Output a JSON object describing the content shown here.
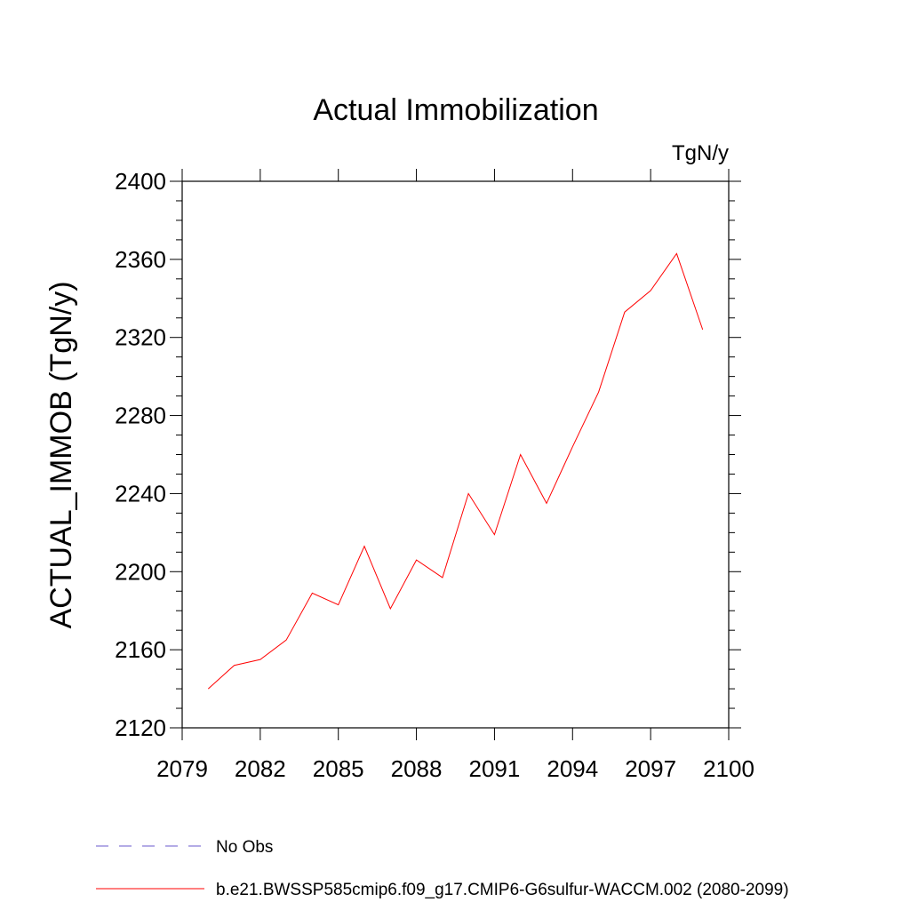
{
  "chart_data": {
    "type": "line",
    "title": "Actual Immobilization",
    "units_label": "TgN/y",
    "xlabel": "",
    "ylabel": "ACTUAL_IMMOB  (TgN/y)",
    "xlim": [
      2079,
      2100
    ],
    "ylim": [
      2120,
      2400
    ],
    "x_ticks": [
      "2079",
      "2082",
      "2085",
      "2088",
      "2091",
      "2094",
      "2097",
      "2100"
    ],
    "y_ticks": [
      "2120",
      "2160",
      "2200",
      "2240",
      "2280",
      "2320",
      "2360",
      "2400"
    ],
    "grid": false,
    "legend_position": "bottom",
    "series": [
      {
        "name": "No Obs",
        "color": "#6a5acd",
        "style": "dashed",
        "x": [],
        "values": []
      },
      {
        "name": "b.e21.BWSSP585cmip6.f09_g17.CMIP6-G6sulfur-WACCM.002 (2080-2099)",
        "color": "#ff0000",
        "style": "solid",
        "x": [
          2080,
          2081,
          2082,
          2083,
          2084,
          2085,
          2086,
          2087,
          2088,
          2089,
          2090,
          2091,
          2092,
          2093,
          2094,
          2095,
          2096,
          2097,
          2098,
          2099
        ],
        "values": [
          2140,
          2152,
          2155,
          2165,
          2189,
          2183,
          2213,
          2181,
          2206,
          2197,
          2240,
          2219,
          2260,
          2235,
          2264,
          2292,
          2333,
          2344,
          2363,
          2324
        ]
      }
    ]
  }
}
